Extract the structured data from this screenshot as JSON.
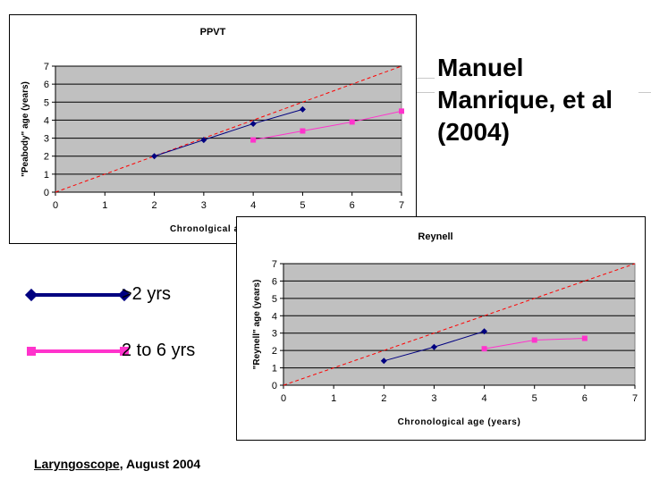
{
  "authors": "Manuel Manrique, et al (2004)",
  "legend": [
    {
      "label": ">2 yrs",
      "color": "#000080",
      "marker": "diamond"
    },
    {
      "label": "2 to 6 yrs",
      "color": "#ff33cc",
      "marker": "square"
    }
  ],
  "citation": {
    "journal": "Laryngoscope",
    "rest": ", August 2004"
  },
  "chart_data": [
    {
      "type": "line",
      "title": "PPVT",
      "xlabel": "Chronolgical age (years)",
      "ylabel": "\"Peabody\" age (years)",
      "xlim": [
        0,
        7
      ],
      "ylim": [
        0,
        7
      ],
      "x_ticks": [
        0,
        1,
        2,
        3,
        4,
        5,
        6,
        7
      ],
      "y_ticks": [
        0,
        1,
        2,
        3,
        4,
        5,
        6,
        7
      ],
      "grid": true,
      "plot_background": "#c0c0c0",
      "reference_line": {
        "from": [
          0,
          0
        ],
        "to": [
          7,
          7
        ],
        "color": "#ff0000",
        "style": "dashed"
      },
      "series": [
        {
          "legend_ref": ">2 yrs",
          "color": "#000080",
          "marker": "diamond",
          "points": [
            [
              2,
              2.0
            ],
            [
              3,
              2.9
            ],
            [
              4,
              3.8
            ],
            [
              5,
              4.6
            ]
          ]
        },
        {
          "legend_ref": "2 to 6 yrs",
          "color": "#ff33cc",
          "marker": "square",
          "points": [
            [
              4,
              2.9
            ],
            [
              5,
              3.4
            ],
            [
              6,
              3.9
            ],
            [
              7,
              4.5
            ]
          ]
        }
      ]
    },
    {
      "type": "line",
      "title": "Reynell",
      "xlabel": "Chronological age (years)",
      "ylabel": "\"Reynell\" age (years)",
      "xlim": [
        0,
        7
      ],
      "ylim": [
        0,
        7
      ],
      "x_ticks": [
        0,
        1,
        2,
        3,
        4,
        5,
        6,
        7
      ],
      "y_ticks": [
        0,
        1,
        2,
        3,
        4,
        5,
        6,
        7
      ],
      "grid": true,
      "plot_background": "#c0c0c0",
      "reference_line": {
        "from": [
          0,
          0
        ],
        "to": [
          7,
          7
        ],
        "color": "#ff0000",
        "style": "dashed"
      },
      "series": [
        {
          "legend_ref": ">2 yrs",
          "color": "#000080",
          "marker": "diamond",
          "points": [
            [
              2,
              1.4
            ],
            [
              3,
              2.2
            ],
            [
              4,
              3.1
            ]
          ]
        },
        {
          "legend_ref": "2 to 6 yrs",
          "color": "#ff33cc",
          "marker": "square",
          "points": [
            [
              4,
              2.1
            ],
            [
              5,
              2.6
            ],
            [
              6,
              2.7
            ]
          ]
        }
      ]
    }
  ]
}
